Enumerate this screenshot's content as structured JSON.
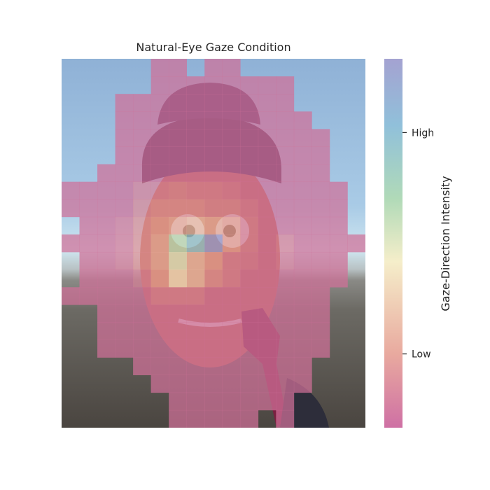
{
  "chart_data": {
    "type": "heatmap",
    "title": "Natural-Eye Gaze Condition",
    "colorbar": {
      "label": "Gaze-Direction Intensity",
      "ticks": [
        {
          "label": "High",
          "value": 0.8
        },
        {
          "label": "Low",
          "value": 0.2
        }
      ],
      "range": [
        0,
        1
      ],
      "colors": [
        "#c9609a",
        "#e6a094",
        "#f4ecc4",
        "#a8d6b0",
        "#84b9d6",
        "#9a98cc"
      ]
    },
    "grid": {
      "rows": 21,
      "cols": 17
    },
    "background_regions": {
      "sky_color": "#92b4d6",
      "horizon_color": "#cfe3ee",
      "ground_color": "#6f6b63",
      "hat_color": "#3d2a4f",
      "face_color": "#b8694f"
    },
    "cells": [
      [
        0,
        5,
        0.05
      ],
      [
        0,
        6,
        0.05
      ],
      [
        0,
        8,
        0.05
      ],
      [
        0,
        9,
        0.05
      ],
      [
        1,
        5,
        0.05
      ],
      [
        1,
        6,
        0.05
      ],
      [
        1,
        7,
        0.05
      ],
      [
        1,
        8,
        0.05
      ],
      [
        1,
        9,
        0.05
      ],
      [
        1,
        10,
        0.05
      ],
      [
        1,
        11,
        0.05
      ],
      [
        1,
        12,
        0.05
      ],
      [
        2,
        3,
        0.05
      ],
      [
        2,
        4,
        0.05
      ],
      [
        2,
        5,
        0.05
      ],
      [
        2,
        6,
        0.05
      ],
      [
        2,
        7,
        0.05
      ],
      [
        2,
        8,
        0.05
      ],
      [
        2,
        9,
        0.05
      ],
      [
        2,
        10,
        0.05
      ],
      [
        2,
        11,
        0.05
      ],
      [
        2,
        12,
        0.05
      ],
      [
        3,
        3,
        0.05
      ],
      [
        3,
        4,
        0.05
      ],
      [
        3,
        5,
        0.05
      ],
      [
        3,
        6,
        0.05
      ],
      [
        3,
        7,
        0.05
      ],
      [
        3,
        8,
        0.05
      ],
      [
        3,
        9,
        0.05
      ],
      [
        3,
        10,
        0.05
      ],
      [
        3,
        11,
        0.05
      ],
      [
        3,
        12,
        0.05
      ],
      [
        3,
        13,
        0.05
      ],
      [
        4,
        3,
        0.05
      ],
      [
        4,
        4,
        0.05
      ],
      [
        4,
        5,
        0.05
      ],
      [
        4,
        6,
        0.05
      ],
      [
        4,
        7,
        0.05
      ],
      [
        4,
        8,
        0.05
      ],
      [
        4,
        9,
        0.05
      ],
      [
        4,
        10,
        0.05
      ],
      [
        4,
        11,
        0.05
      ],
      [
        4,
        12,
        0.05
      ],
      [
        4,
        13,
        0.05
      ],
      [
        4,
        14,
        0.05
      ],
      [
        5,
        3,
        0.05
      ],
      [
        5,
        4,
        0.05
      ],
      [
        5,
        5,
        0.05
      ],
      [
        5,
        6,
        0.05
      ],
      [
        5,
        7,
        0.05
      ],
      [
        5,
        8,
        0.05
      ],
      [
        5,
        9,
        0.05
      ],
      [
        5,
        10,
        0.05
      ],
      [
        5,
        11,
        0.05
      ],
      [
        5,
        12,
        0.05
      ],
      [
        5,
        13,
        0.05
      ],
      [
        5,
        14,
        0.05
      ],
      [
        6,
        2,
        0.05
      ],
      [
        6,
        3,
        0.05
      ],
      [
        6,
        4,
        0.05
      ],
      [
        6,
        5,
        0.05
      ],
      [
        6,
        6,
        0.05
      ],
      [
        6,
        7,
        0.05
      ],
      [
        6,
        8,
        0.05
      ],
      [
        6,
        9,
        0.05
      ],
      [
        6,
        10,
        0.05
      ],
      [
        6,
        11,
        0.05
      ],
      [
        6,
        12,
        0.05
      ],
      [
        6,
        13,
        0.05
      ],
      [
        6,
        14,
        0.05
      ],
      [
        7,
        0,
        0.05
      ],
      [
        7,
        1,
        0.05
      ],
      [
        7,
        2,
        0.05
      ],
      [
        7,
        3,
        0.05
      ],
      [
        7,
        4,
        0.1
      ],
      [
        7,
        5,
        0.1
      ],
      [
        7,
        6,
        0.12
      ],
      [
        7,
        7,
        0.1
      ],
      [
        7,
        8,
        0.1
      ],
      [
        7,
        9,
        0.08
      ],
      [
        7,
        10,
        0.05
      ],
      [
        7,
        11,
        0.05
      ],
      [
        7,
        12,
        0.05
      ],
      [
        7,
        13,
        0.05
      ],
      [
        7,
        14,
        0.05
      ],
      [
        7,
        15,
        0.05
      ],
      [
        8,
        0,
        0.05
      ],
      [
        8,
        1,
        0.05
      ],
      [
        8,
        2,
        0.05
      ],
      [
        8,
        3,
        0.05
      ],
      [
        8,
        4,
        0.12
      ],
      [
        8,
        5,
        0.15
      ],
      [
        8,
        6,
        0.15
      ],
      [
        8,
        7,
        0.15
      ],
      [
        8,
        8,
        0.12
      ],
      [
        8,
        9,
        0.12
      ],
      [
        8,
        10,
        0.08
      ],
      [
        8,
        11,
        0.05
      ],
      [
        8,
        12,
        0.05
      ],
      [
        8,
        13,
        0.05
      ],
      [
        8,
        14,
        0.05
      ],
      [
        8,
        15,
        0.05
      ],
      [
        9,
        1,
        0.05
      ],
      [
        9,
        2,
        0.05
      ],
      [
        9,
        3,
        0.08
      ],
      [
        9,
        4,
        0.15
      ],
      [
        9,
        5,
        0.2
      ],
      [
        9,
        6,
        0.25
      ],
      [
        9,
        7,
        0.3
      ],
      [
        9,
        8,
        0.25
      ],
      [
        9,
        9,
        0.2
      ],
      [
        9,
        10,
        0.1
      ],
      [
        9,
        11,
        0.05
      ],
      [
        9,
        12,
        0.05
      ],
      [
        9,
        13,
        0.05
      ],
      [
        9,
        14,
        0.05
      ],
      [
        9,
        15,
        0.05
      ],
      [
        10,
        0,
        0.05
      ],
      [
        10,
        1,
        0.05
      ],
      [
        10,
        2,
        0.05
      ],
      [
        10,
        3,
        0.08
      ],
      [
        10,
        4,
        0.15
      ],
      [
        10,
        5,
        0.25
      ],
      [
        10,
        6,
        0.58
      ],
      [
        10,
        7,
        0.75
      ],
      [
        10,
        8,
        0.98
      ],
      [
        10,
        9,
        0.2
      ],
      [
        10,
        10,
        0.1
      ],
      [
        10,
        11,
        0.05
      ],
      [
        10,
        12,
        0.1
      ],
      [
        10,
        13,
        0.05
      ],
      [
        10,
        14,
        0.05
      ],
      [
        10,
        15,
        0.05
      ],
      [
        10,
        16,
        0.05
      ],
      [
        11,
        1,
        0.05
      ],
      [
        11,
        2,
        0.05
      ],
      [
        11,
        3,
        0.08
      ],
      [
        11,
        4,
        0.15
      ],
      [
        11,
        5,
        0.25
      ],
      [
        11,
        6,
        0.5
      ],
      [
        11,
        7,
        0.3
      ],
      [
        11,
        8,
        0.2
      ],
      [
        11,
        9,
        0.1
      ],
      [
        11,
        10,
        0.08
      ],
      [
        11,
        11,
        0.05
      ],
      [
        11,
        12,
        0.08
      ],
      [
        11,
        13,
        0.05
      ],
      [
        11,
        14,
        0.05
      ],
      [
        11,
        15,
        0.05
      ],
      [
        12,
        1,
        0.05
      ],
      [
        12,
        2,
        0.05
      ],
      [
        12,
        3,
        0.05
      ],
      [
        12,
        4,
        0.1
      ],
      [
        12,
        5,
        0.2
      ],
      [
        12,
        6,
        0.4
      ],
      [
        12,
        7,
        0.3
      ],
      [
        12,
        8,
        0.15
      ],
      [
        12,
        9,
        0.1
      ],
      [
        12,
        10,
        0.05
      ],
      [
        12,
        11,
        0.05
      ],
      [
        12,
        12,
        0.05
      ],
      [
        12,
        13,
        0.05
      ],
      [
        12,
        14,
        0.05
      ],
      [
        12,
        15,
        0.05
      ],
      [
        13,
        0,
        0.05
      ],
      [
        13,
        1,
        0.05
      ],
      [
        13,
        2,
        0.05
      ],
      [
        13,
        3,
        0.05
      ],
      [
        13,
        4,
        0.05
      ],
      [
        13,
        5,
        0.1
      ],
      [
        13,
        6,
        0.1
      ],
      [
        13,
        7,
        0.1
      ],
      [
        13,
        8,
        0.05
      ],
      [
        13,
        9,
        0.05
      ],
      [
        13,
        10,
        0.05
      ],
      [
        13,
        11,
        0.05
      ],
      [
        13,
        12,
        0.05
      ],
      [
        13,
        13,
        0.05
      ],
      [
        13,
        14,
        0.05
      ],
      [
        14,
        2,
        0.05
      ],
      [
        14,
        3,
        0.05
      ],
      [
        14,
        4,
        0.05
      ],
      [
        14,
        5,
        0.05
      ],
      [
        14,
        6,
        0.05
      ],
      [
        14,
        7,
        0.05
      ],
      [
        14,
        8,
        0.05
      ],
      [
        14,
        9,
        0.05
      ],
      [
        14,
        10,
        0.05
      ],
      [
        14,
        11,
        0.05
      ],
      [
        14,
        12,
        0.05
      ],
      [
        14,
        13,
        0.05
      ],
      [
        14,
        14,
        0.05
      ],
      [
        15,
        2,
        0.05
      ],
      [
        15,
        3,
        0.05
      ],
      [
        15,
        4,
        0.05
      ],
      [
        15,
        5,
        0.05
      ],
      [
        15,
        6,
        0.05
      ],
      [
        15,
        7,
        0.05
      ],
      [
        15,
        8,
        0.05
      ],
      [
        15,
        9,
        0.05
      ],
      [
        15,
        10,
        0.05
      ],
      [
        15,
        11,
        0.05
      ],
      [
        15,
        12,
        0.05
      ],
      [
        15,
        13,
        0.05
      ],
      [
        15,
        14,
        0.05
      ],
      [
        16,
        2,
        0.05
      ],
      [
        16,
        3,
        0.05
      ],
      [
        16,
        4,
        0.05
      ],
      [
        16,
        5,
        0.05
      ],
      [
        16,
        6,
        0.05
      ],
      [
        16,
        7,
        0.05
      ],
      [
        16,
        8,
        0.05
      ],
      [
        16,
        9,
        0.05
      ],
      [
        16,
        10,
        0.05
      ],
      [
        16,
        11,
        0.05
      ],
      [
        16,
        12,
        0.05
      ],
      [
        16,
        13,
        0.05
      ],
      [
        16,
        14,
        0.05
      ],
      [
        17,
        4,
        0.05
      ],
      [
        17,
        5,
        0.05
      ],
      [
        17,
        6,
        0.05
      ],
      [
        17,
        7,
        0.05
      ],
      [
        17,
        8,
        0.05
      ],
      [
        17,
        9,
        0.05
      ],
      [
        17,
        10,
        0.05
      ],
      [
        17,
        11,
        0.05
      ],
      [
        17,
        12,
        0.05
      ],
      [
        17,
        13,
        0.05
      ],
      [
        18,
        5,
        0.05
      ],
      [
        18,
        6,
        0.05
      ],
      [
        18,
        7,
        0.05
      ],
      [
        18,
        8,
        0.05
      ],
      [
        18,
        9,
        0.05
      ],
      [
        18,
        10,
        0.05
      ],
      [
        18,
        11,
        0.05
      ],
      [
        18,
        12,
        0.05
      ],
      [
        18,
        13,
        0.05
      ],
      [
        19,
        6,
        0.05
      ],
      [
        19,
        7,
        0.05
      ],
      [
        19,
        8,
        0.05
      ],
      [
        19,
        9,
        0.05
      ],
      [
        19,
        10,
        0.05
      ],
      [
        19,
        11,
        0.05
      ],
      [
        19,
        12,
        0.05
      ],
      [
        20,
        6,
        0.05
      ],
      [
        20,
        7,
        0.05
      ],
      [
        20,
        8,
        0.05
      ],
      [
        20,
        9,
        0.05
      ],
      [
        20,
        10,
        0.05
      ],
      [
        20,
        12,
        0.05
      ]
    ]
  }
}
